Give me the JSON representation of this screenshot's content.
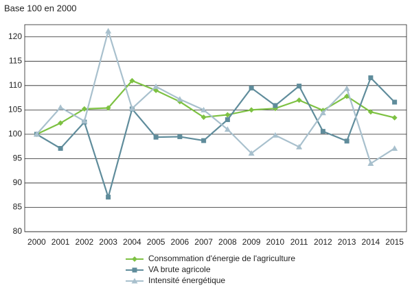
{
  "chart_data": {
    "type": "line",
    "title": "Base 100 en 2000",
    "categories": [
      "2000",
      "2001",
      "2002",
      "2003",
      "2004",
      "2005",
      "2006",
      "2007",
      "2008",
      "2009",
      "2010",
      "2011",
      "2012",
      "2013",
      "2014",
      "2015"
    ],
    "series": [
      {
        "name": "Consommation d'énergie de l'agriculture",
        "color": "#7dc142",
        "marker": "diamond",
        "values": [
          100,
          102.3,
          105.2,
          105.4,
          111,
          109,
          106.7,
          103.5,
          104,
          105,
          105.3,
          107,
          104.9,
          107.8,
          104.6,
          103.4
        ]
      },
      {
        "name": "VA brute agricole",
        "color": "#5f8c9b",
        "marker": "square",
        "values": [
          100,
          97.1,
          102.5,
          87.1,
          105.2,
          99.4,
          99.5,
          98.7,
          103,
          109.5,
          105.9,
          109.9,
          100.6,
          98.6,
          111.6,
          106.6
        ]
      },
      {
        "name": "Intensité énergétique",
        "color": "#a8c0cd",
        "marker": "triangle",
        "values": [
          100,
          105.5,
          102.7,
          121.2,
          105.3,
          109.8,
          107.2,
          105,
          101,
          96.1,
          99.8,
          97.4,
          104.4,
          109.4,
          94,
          97.1
        ]
      }
    ],
    "ylim": [
      80,
      122.5
    ],
    "yticks": [
      80,
      85,
      90,
      95,
      100,
      105,
      110,
      115,
      120
    ],
    "grid": true,
    "legend": "bottom"
  }
}
